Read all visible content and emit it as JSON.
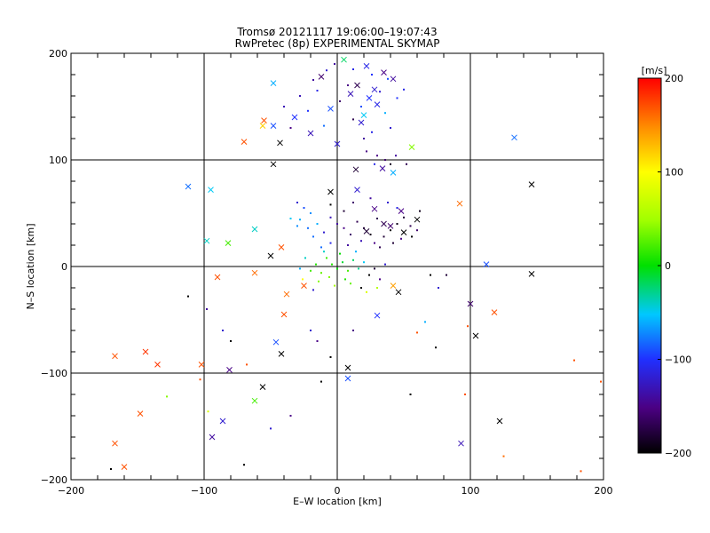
{
  "chart_data": {
    "type": "scatter",
    "title_line1": "Tromsø 20121117 19:06:00–19:07:43",
    "title_line2": "RwPretec (8p) EXPERIMENTAL SKYMAP",
    "xlabel": "E–W location [km]",
    "ylabel": "N–S location [km]",
    "xlim": [
      -200,
      200
    ],
    "ylim": [
      -200,
      200
    ],
    "xticks": [
      -200,
      -100,
      0,
      100,
      200
    ],
    "yticks": [
      -200,
      -100,
      0,
      100,
      200
    ],
    "grid": true,
    "colorbar": {
      "label": "[m/s]",
      "range": [
        -200,
        200
      ],
      "ticks": [
        200,
        100,
        0,
        -100,
        -200
      ],
      "colormap": "black-purple-blue-cyan-green-yellow-red"
    },
    "markers_x": [
      [
        5,
        194,
        -20
      ],
      [
        22,
        188,
        -110
      ],
      [
        35,
        182,
        -150
      ],
      [
        -12,
        178,
        -160
      ],
      [
        42,
        176,
        -140
      ],
      [
        15,
        170,
        -170
      ],
      [
        28,
        166,
        -120
      ],
      [
        -48,
        172,
        -60
      ],
      [
        10,
        162,
        -130
      ],
      [
        24,
        158,
        -100
      ],
      [
        30,
        152,
        -110
      ],
      [
        -5,
        148,
        -90
      ],
      [
        20,
        142,
        -50
      ],
      [
        18,
        135,
        -120
      ],
      [
        -32,
        140,
        -100
      ],
      [
        -48,
        132,
        -90
      ],
      [
        -55,
        137,
        170
      ],
      [
        -56,
        132,
        120
      ],
      [
        -70,
        117,
        170
      ],
      [
        -20,
        125,
        -130
      ],
      [
        0,
        115,
        -120
      ],
      [
        -43,
        116,
        -200
      ],
      [
        -48,
        96,
        -200
      ],
      [
        14,
        91,
        -180
      ],
      [
        34,
        92,
        -140
      ],
      [
        42,
        88,
        -60
      ],
      [
        -112,
        75,
        -80
      ],
      [
        -95,
        72,
        -50
      ],
      [
        146,
        77,
        -200
      ],
      [
        133,
        121,
        -80
      ],
      [
        -98,
        24,
        -40
      ],
      [
        -82,
        22,
        20
      ],
      [
        -62,
        35,
        -40
      ],
      [
        -42,
        18,
        170
      ],
      [
        -50,
        10,
        -200
      ],
      [
        60,
        44,
        -200
      ],
      [
        48,
        52,
        -150
      ],
      [
        92,
        59,
        160
      ],
      [
        28,
        54,
        -150
      ],
      [
        35,
        40,
        -170
      ],
      [
        22,
        33,
        -180
      ],
      [
        40,
        38,
        -160
      ],
      [
        50,
        32,
        -200
      ],
      [
        -90,
        -10,
        170
      ],
      [
        -62,
        -6,
        160
      ],
      [
        -38,
        -26,
        160
      ],
      [
        -25,
        -18,
        170
      ],
      [
        -40,
        -45,
        170
      ],
      [
        -46,
        -71,
        -90
      ],
      [
        -42,
        -82,
        -200
      ],
      [
        30,
        -46,
        -100
      ],
      [
        46,
        -24,
        -200
      ],
      [
        42,
        -18,
        140
      ],
      [
        112,
        2,
        -90
      ],
      [
        146,
        -7,
        -200
      ],
      [
        100,
        -35,
        -160
      ],
      [
        118,
        -43,
        170
      ],
      [
        104,
        -65,
        -200
      ],
      [
        -167,
        -84,
        170
      ],
      [
        -144,
        -80,
        180
      ],
      [
        -135,
        -92,
        180
      ],
      [
        -102,
        -92,
        170
      ],
      [
        -81,
        -97,
        -150
      ],
      [
        -56,
        -113,
        -200
      ],
      [
        -62,
        -126,
        20
      ],
      [
        -148,
        -138,
        170
      ],
      [
        -86,
        -145,
        -120
      ],
      [
        -94,
        -160,
        -140
      ],
      [
        -167,
        -166,
        170
      ],
      [
        -160,
        -188,
        170
      ],
      [
        8,
        -95,
        -200
      ],
      [
        8,
        -105,
        -90
      ],
      [
        122,
        -145,
        -200
      ],
      [
        93,
        -166,
        -130
      ],
      [
        56,
        112,
        40
      ],
      [
        15,
        72,
        -120
      ],
      [
        -5,
        70,
        -200
      ]
    ],
    "markers_dot": [
      [
        -2,
        190,
        -140
      ],
      [
        12,
        185,
        -110
      ],
      [
        -8,
        184,
        -120
      ],
      [
        26,
        180,
        -100
      ],
      [
        38,
        176,
        -90
      ],
      [
        8,
        170,
        -150
      ],
      [
        -15,
        165,
        -110
      ],
      [
        32,
        164,
        -120
      ],
      [
        -28,
        160,
        -130
      ],
      [
        45,
        158,
        -100
      ],
      [
        2,
        155,
        -160
      ],
      [
        18,
        150,
        -90
      ],
      [
        -22,
        146,
        -100
      ],
      [
        36,
        144,
        -60
      ],
      [
        12,
        138,
        -170
      ],
      [
        -35,
        130,
        -150
      ],
      [
        26,
        126,
        -110
      ],
      [
        -10,
        132,
        -80
      ],
      [
        40,
        130,
        -120
      ],
      [
        20,
        120,
        -140
      ],
      [
        -40,
        150,
        -130
      ],
      [
        50,
        166,
        -110
      ],
      [
        -18,
        175,
        -140
      ],
      [
        30,
        104,
        -150
      ],
      [
        36,
        100,
        -160
      ],
      [
        22,
        108,
        -150
      ],
      [
        44,
        104,
        -140
      ],
      [
        52,
        96,
        -170
      ],
      [
        28,
        96,
        -110
      ],
      [
        40,
        96,
        -190
      ],
      [
        -30,
        60,
        -120
      ],
      [
        -25,
        55,
        -90
      ],
      [
        -20,
        50,
        -70
      ],
      [
        -28,
        44,
        -60
      ],
      [
        -22,
        36,
        -80
      ],
      [
        -15,
        40,
        -60
      ],
      [
        -30,
        38,
        -70
      ],
      [
        -35,
        45,
        -50
      ],
      [
        -18,
        28,
        -80
      ],
      [
        -10,
        32,
        -120
      ],
      [
        -5,
        46,
        -130
      ],
      [
        0,
        40,
        -140
      ],
      [
        5,
        36,
        -150
      ],
      [
        10,
        30,
        -160
      ],
      [
        15,
        42,
        -170
      ],
      [
        20,
        36,
        -180
      ],
      [
        25,
        30,
        -190
      ],
      [
        30,
        45,
        -170
      ],
      [
        35,
        28,
        -180
      ],
      [
        40,
        34,
        -200
      ],
      [
        45,
        40,
        -190
      ],
      [
        50,
        46,
        -180
      ],
      [
        55,
        38,
        -170
      ],
      [
        60,
        34,
        -160
      ],
      [
        -5,
        58,
        -200
      ],
      [
        5,
        52,
        -180
      ],
      [
        12,
        60,
        -160
      ],
      [
        25,
        64,
        -140
      ],
      [
        38,
        60,
        -120
      ],
      [
        45,
        55,
        -110
      ],
      [
        18,
        24,
        -130
      ],
      [
        28,
        22,
        -150
      ],
      [
        8,
        20,
        -140
      ],
      [
        -5,
        22,
        -110
      ],
      [
        -12,
        18,
        -80
      ],
      [
        48,
        26,
        -150
      ],
      [
        56,
        28,
        -200
      ],
      [
        32,
        18,
        -170
      ],
      [
        42,
        22,
        -180
      ],
      [
        62,
        52,
        -190
      ],
      [
        -8,
        8,
        20
      ],
      [
        -4,
        2,
        10
      ],
      [
        0,
        -2,
        0
      ],
      [
        4,
        4,
        -10
      ],
      [
        8,
        -4,
        20
      ],
      [
        -12,
        -6,
        30
      ],
      [
        12,
        6,
        -20
      ],
      [
        -6,
        -10,
        40
      ],
      [
        6,
        -12,
        10
      ],
      [
        2,
        12,
        0
      ],
      [
        -16,
        2,
        10
      ],
      [
        16,
        -2,
        -30
      ],
      [
        -10,
        14,
        -40
      ],
      [
        10,
        -16,
        30
      ],
      [
        -2,
        -18,
        50
      ],
      [
        20,
        4,
        -50
      ],
      [
        -20,
        -4,
        20
      ],
      [
        14,
        14,
        -60
      ],
      [
        -14,
        -14,
        40
      ],
      [
        24,
        -8,
        -200
      ],
      [
        28,
        -2,
        -180
      ],
      [
        32,
        -12,
        -150
      ],
      [
        36,
        2,
        -120
      ],
      [
        -24,
        8,
        -40
      ],
      [
        -28,
        -2,
        -60
      ],
      [
        18,
        -20,
        -200
      ],
      [
        -18,
        -22,
        -120
      ],
      [
        22,
        -24,
        80
      ],
      [
        -26,
        -12,
        100
      ],
      [
        30,
        -20,
        60
      ],
      [
        70,
        -8,
        -200
      ],
      [
        82,
        -8,
        -180
      ],
      [
        76,
        -20,
        -120
      ],
      [
        60,
        -62,
        170
      ],
      [
        66,
        -52,
        -60
      ],
      [
        74,
        -76,
        -200
      ],
      [
        98,
        -56,
        170
      ],
      [
        96,
        -120,
        170
      ],
      [
        55,
        -120,
        -200
      ],
      [
        -12,
        -108,
        -200
      ],
      [
        -5,
        -85,
        -200
      ],
      [
        -15,
        -70,
        -150
      ],
      [
        -20,
        -60,
        -120
      ],
      [
        -112,
        -28,
        -200
      ],
      [
        -98,
        -40,
        -140
      ],
      [
        -128,
        -122,
        40
      ],
      [
        -97,
        -136,
        80
      ],
      [
        -50,
        -152,
        -120
      ],
      [
        -70,
        -186,
        -200
      ],
      [
        -35,
        -140,
        -150
      ],
      [
        178,
        -88,
        170
      ],
      [
        183,
        -192,
        170
      ],
      [
        198,
        -108,
        170
      ],
      [
        125,
        -178,
        160
      ],
      [
        -80,
        -70,
        -200
      ],
      [
        -86,
        -60,
        -120
      ],
      [
        -68,
        -92,
        170
      ],
      [
        -103,
        -106,
        170
      ],
      [
        12,
        -60,
        -150
      ],
      [
        -170,
        -190,
        -200
      ]
    ]
  }
}
